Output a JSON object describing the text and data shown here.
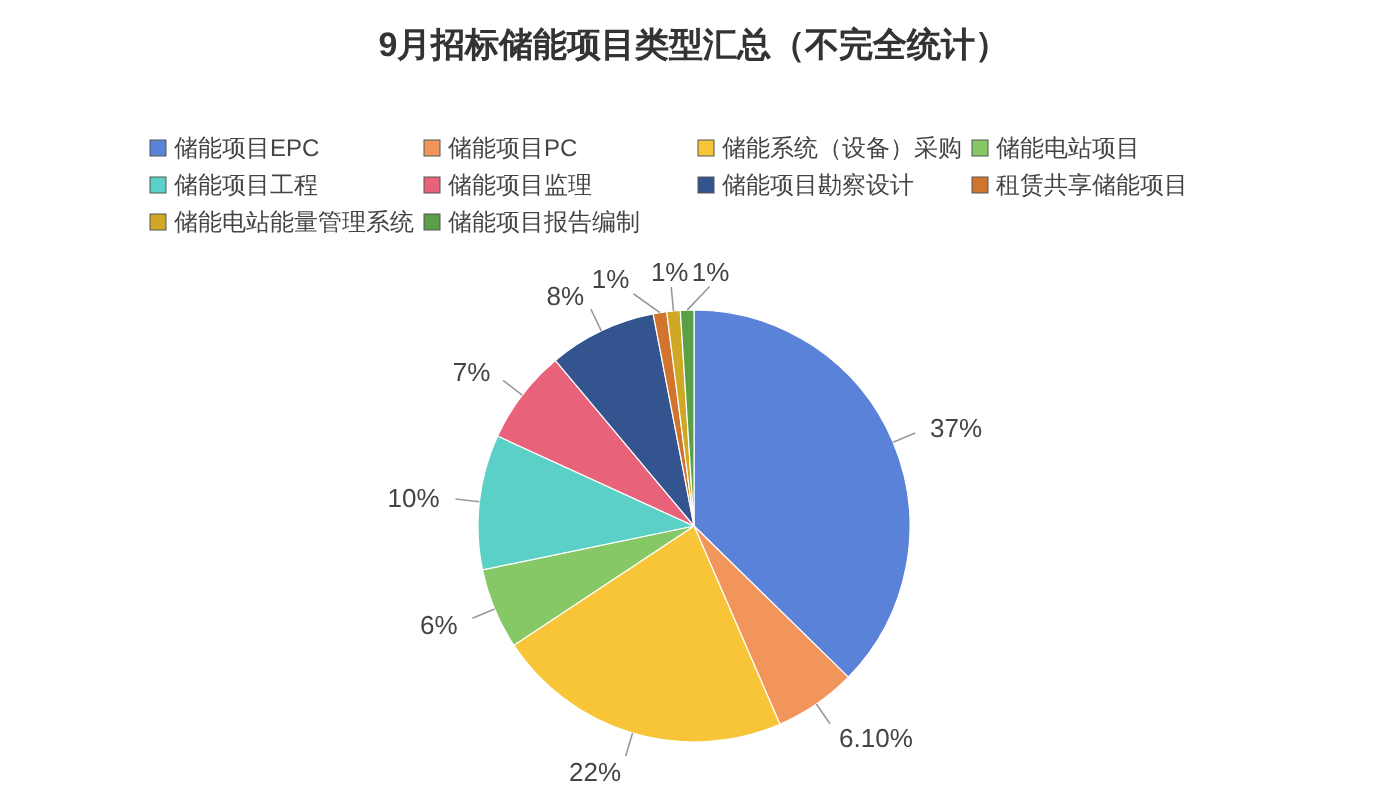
{
  "chart_data": {
    "type": "pie",
    "title": "9月招标储能项目类型汇总（不完全统计）",
    "categories": [
      "储能项目EPC",
      "储能项目PC",
      "储能系统（设备）采购",
      "储能电站项目",
      "储能项目工程",
      "储能项目监理",
      "储能项目勘察设计",
      "租赁共享储能项目",
      "储能电站能量管理系统",
      "储能项目报告编制"
    ],
    "values": [
      37,
      6.1,
      22,
      6,
      10,
      7,
      8,
      1,
      1,
      1
    ],
    "value_labels": [
      "37%",
      "6.10%",
      "22%",
      "6%",
      "10%",
      "7%",
      "8%",
      "1%",
      "1%",
      "1%"
    ],
    "colors": [
      "#5a82d8",
      "#f2955a",
      "#f7c537",
      "#86c766",
      "#5bd0c6",
      "#e8637a",
      "#34548f",
      "#d0742e",
      "#cfa826",
      "#5a9e45"
    ],
    "legend": "top"
  }
}
